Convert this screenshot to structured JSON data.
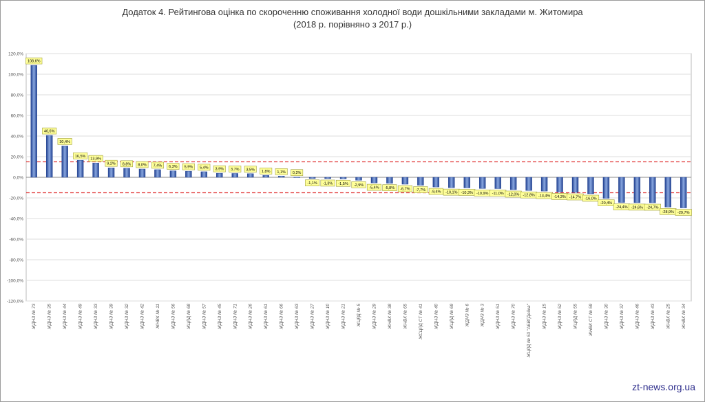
{
  "chart_data": {
    "type": "bar",
    "title": "Додаток 4. Рейтингова оцінка по скороченню споживання холодної води дошкільними закладами м. Житомира",
    "subtitle": "(2018 р. порівняно з 2017 р.)",
    "xlabel": "",
    "ylabel": "",
    "ylim": [
      -120,
      120
    ],
    "yticks": [
      "120,0%",
      "100,0%",
      "80,0%",
      "60,0%",
      "40,0%",
      "20,0%",
      "0,0%",
      "-20,0%",
      "-40,0%",
      "-60,0%",
      "-80,0%",
      "-100,0%",
      "-120,0%"
    ],
    "grid": true,
    "reference_lines": [
      15,
      -15
    ],
    "colors": {
      "bar_top": "#1f3f8f",
      "bar_mid": "#8aa8e0",
      "reference_line": "#e03030",
      "label_box": "#ffff99",
      "label_border": "#a0a040"
    },
    "categories": [
      "ЖДНЗ № 73",
      "ЖДНЗ № 35",
      "ЖДНЗ № 44",
      "ЖДНЗ № 49",
      "ЖДНЗ № 33",
      "ЖДНЗ № 39",
      "ЖДНЗ № 32",
      "ЖДНЗ № 42",
      "ЖНВК № 11",
      "ЖДНЗ № 56",
      "ЖЦРД № 68",
      "ЖДНЗ № 57",
      "ЖДНЗ № 45",
      "ЖДНЗ № 71",
      "ЖДНЗ № 26",
      "ЖДНЗ № 61",
      "ЖДНЗ № 66",
      "ЖДНЗ № 63",
      "ЖДНЗ № 27",
      "ЖДНЗ № 10",
      "ЖДНЗ № 21",
      "ЖЦРД № 5",
      "ЖДНЗ № 29",
      "ЖНВК № 38",
      "ЖНВК № 65",
      "ЖСЦРД СТ № 41",
      "ЖДНЗ № 40",
      "ЖЦРД № 69",
      "ЖДНЗ № 6",
      "ЖДНЗ № 3",
      "ЖДНЗ № 51",
      "ЖДНЗ № 70",
      "ЖЦРД № 53 \"АБВГДейка\"",
      "ЖДНЗ № 15",
      "ЖДНЗ № 52",
      "ЖЦРД № 55",
      "ЖНВК СТ № 59",
      "ЖДНЗ № 30",
      "ЖДНЗ № 37",
      "ЖДНЗ № 46",
      "ЖДНЗ № 43",
      "ЖНВК № 25",
      "ЖНВК № 34"
    ],
    "values": [
      108.6,
      40.6,
      30.4,
      16.5,
      13.9,
      9.2,
      8.8,
      8.0,
      7.4,
      6.3,
      5.9,
      5.4,
      3.9,
      3.7,
      3.5,
      1.8,
      1.1,
      0.2,
      -1.1,
      -1.3,
      -1.5,
      -2.9,
      -5.4,
      -5.8,
      -6.7,
      -7.7,
      -9.4,
      -10.1,
      -10.3,
      -10.9,
      -11.0,
      -12.0,
      -12.8,
      -13.4,
      -14.3,
      -14.7,
      -16.0,
      -20.4,
      -24.4,
      -24.6,
      -24.7,
      -28.9,
      -29.7
    ],
    "data_labels": [
      "108,6%",
      "40,6%",
      "30,4%",
      "16,5%",
      "13,9%",
      "9,2%",
      "8,8%",
      "8,0%",
      "7,4%",
      "6,3%",
      "5,9%",
      "5,4%",
      "3,9%",
      "3,7%",
      "3,5%",
      "1,8%",
      "1,1%",
      "0,2%",
      "-1,1%",
      "-1,3%",
      "-1,5%",
      "-2,9%",
      "-5,4%",
      "-5,8%",
      "-6,7%",
      "-7,7%",
      "-9,4%",
      "-10,1%",
      "-10,3%",
      "-10,9%",
      "-11,0%",
      "-12,0%",
      "-12,8%",
      "-13,4%",
      "-14,3%",
      "-14,7%",
      "-16,0%",
      "-20,4%",
      "-24,4%",
      "-24,6%",
      "-24,7%",
      "-28,9%",
      "-29,7%"
    ]
  },
  "watermark": "zt-news.org.ua"
}
